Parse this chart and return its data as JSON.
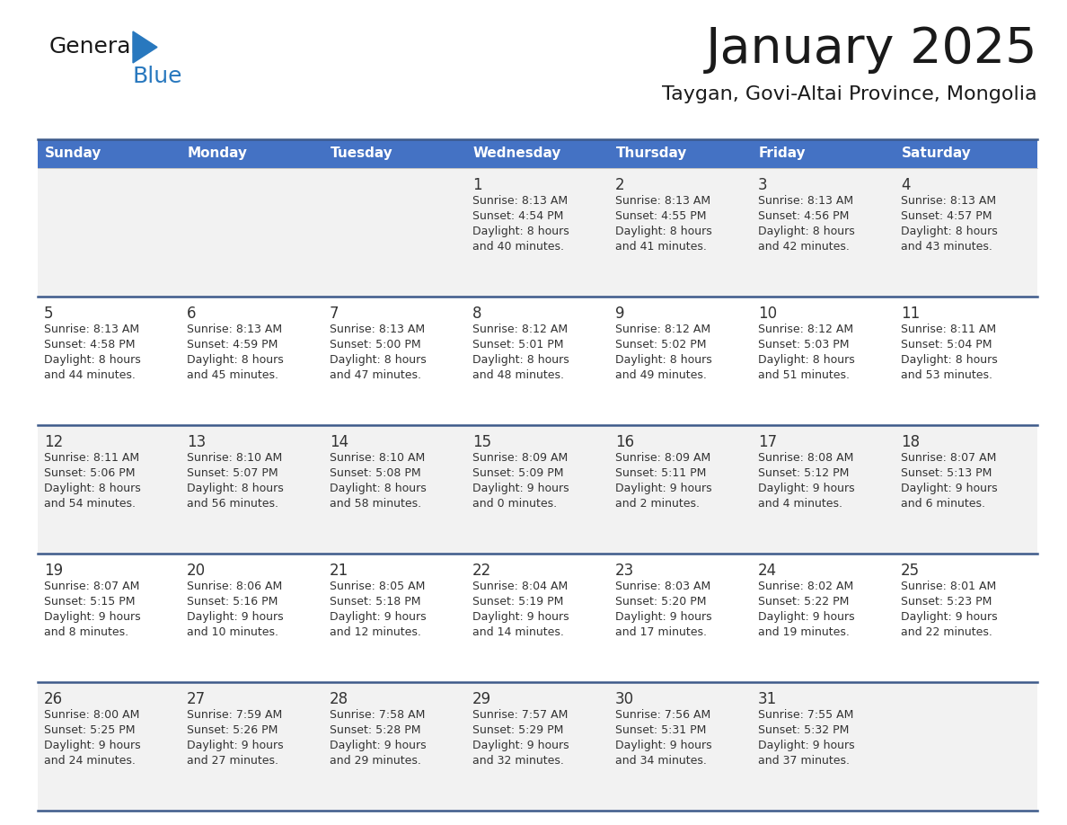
{
  "title": "January 2025",
  "subtitle": "Taygan, Govi-Altai Province, Mongolia",
  "header_bg": "#4472C4",
  "header_text_color": "#FFFFFF",
  "day_names": [
    "Sunday",
    "Monday",
    "Tuesday",
    "Wednesday",
    "Thursday",
    "Friday",
    "Saturday"
  ],
  "row_bg_odd": "#F2F2F2",
  "row_bg_even": "#FFFFFF",
  "cell_text_color": "#333333",
  "day_number_color": "#333333",
  "border_color": "#3D5A8A",
  "logo_general_color": "#1a1a1a",
  "logo_blue_color": "#2878BE",
  "days": [
    {
      "day": 1,
      "col": 3,
      "row": 0,
      "sunrise": "8:13 AM",
      "sunset": "4:54 PM",
      "daylight": "8 hours and 40 minutes."
    },
    {
      "day": 2,
      "col": 4,
      "row": 0,
      "sunrise": "8:13 AM",
      "sunset": "4:55 PM",
      "daylight": "8 hours and 41 minutes."
    },
    {
      "day": 3,
      "col": 5,
      "row": 0,
      "sunrise": "8:13 AM",
      "sunset": "4:56 PM",
      "daylight": "8 hours and 42 minutes."
    },
    {
      "day": 4,
      "col": 6,
      "row": 0,
      "sunrise": "8:13 AM",
      "sunset": "4:57 PM",
      "daylight": "8 hours and 43 minutes."
    },
    {
      "day": 5,
      "col": 0,
      "row": 1,
      "sunrise": "8:13 AM",
      "sunset": "4:58 PM",
      "daylight": "8 hours and 44 minutes."
    },
    {
      "day": 6,
      "col": 1,
      "row": 1,
      "sunrise": "8:13 AM",
      "sunset": "4:59 PM",
      "daylight": "8 hours and 45 minutes."
    },
    {
      "day": 7,
      "col": 2,
      "row": 1,
      "sunrise": "8:13 AM",
      "sunset": "5:00 PM",
      "daylight": "8 hours and 47 minutes."
    },
    {
      "day": 8,
      "col": 3,
      "row": 1,
      "sunrise": "8:12 AM",
      "sunset": "5:01 PM",
      "daylight": "8 hours and 48 minutes."
    },
    {
      "day": 9,
      "col": 4,
      "row": 1,
      "sunrise": "8:12 AM",
      "sunset": "5:02 PM",
      "daylight": "8 hours and 49 minutes."
    },
    {
      "day": 10,
      "col": 5,
      "row": 1,
      "sunrise": "8:12 AM",
      "sunset": "5:03 PM",
      "daylight": "8 hours and 51 minutes."
    },
    {
      "day": 11,
      "col": 6,
      "row": 1,
      "sunrise": "8:11 AM",
      "sunset": "5:04 PM",
      "daylight": "8 hours and 53 minutes."
    },
    {
      "day": 12,
      "col": 0,
      "row": 2,
      "sunrise": "8:11 AM",
      "sunset": "5:06 PM",
      "daylight": "8 hours and 54 minutes."
    },
    {
      "day": 13,
      "col": 1,
      "row": 2,
      "sunrise": "8:10 AM",
      "sunset": "5:07 PM",
      "daylight": "8 hours and 56 minutes."
    },
    {
      "day": 14,
      "col": 2,
      "row": 2,
      "sunrise": "8:10 AM",
      "sunset": "5:08 PM",
      "daylight": "8 hours and 58 minutes."
    },
    {
      "day": 15,
      "col": 3,
      "row": 2,
      "sunrise": "8:09 AM",
      "sunset": "5:09 PM",
      "daylight": "9 hours and 0 minutes."
    },
    {
      "day": 16,
      "col": 4,
      "row": 2,
      "sunrise": "8:09 AM",
      "sunset": "5:11 PM",
      "daylight": "9 hours and 2 minutes."
    },
    {
      "day": 17,
      "col": 5,
      "row": 2,
      "sunrise": "8:08 AM",
      "sunset": "5:12 PM",
      "daylight": "9 hours and 4 minutes."
    },
    {
      "day": 18,
      "col": 6,
      "row": 2,
      "sunrise": "8:07 AM",
      "sunset": "5:13 PM",
      "daylight": "9 hours and 6 minutes."
    },
    {
      "day": 19,
      "col": 0,
      "row": 3,
      "sunrise": "8:07 AM",
      "sunset": "5:15 PM",
      "daylight": "9 hours and 8 minutes."
    },
    {
      "day": 20,
      "col": 1,
      "row": 3,
      "sunrise": "8:06 AM",
      "sunset": "5:16 PM",
      "daylight": "9 hours and 10 minutes."
    },
    {
      "day": 21,
      "col": 2,
      "row": 3,
      "sunrise": "8:05 AM",
      "sunset": "5:18 PM",
      "daylight": "9 hours and 12 minutes."
    },
    {
      "day": 22,
      "col": 3,
      "row": 3,
      "sunrise": "8:04 AM",
      "sunset": "5:19 PM",
      "daylight": "9 hours and 14 minutes."
    },
    {
      "day": 23,
      "col": 4,
      "row": 3,
      "sunrise": "8:03 AM",
      "sunset": "5:20 PM",
      "daylight": "9 hours and 17 minutes."
    },
    {
      "day": 24,
      "col": 5,
      "row": 3,
      "sunrise": "8:02 AM",
      "sunset": "5:22 PM",
      "daylight": "9 hours and 19 minutes."
    },
    {
      "day": 25,
      "col": 6,
      "row": 3,
      "sunrise": "8:01 AM",
      "sunset": "5:23 PM",
      "daylight": "9 hours and 22 minutes."
    },
    {
      "day": 26,
      "col": 0,
      "row": 4,
      "sunrise": "8:00 AM",
      "sunset": "5:25 PM",
      "daylight": "9 hours and 24 minutes."
    },
    {
      "day": 27,
      "col": 1,
      "row": 4,
      "sunrise": "7:59 AM",
      "sunset": "5:26 PM",
      "daylight": "9 hours and 27 minutes."
    },
    {
      "day": 28,
      "col": 2,
      "row": 4,
      "sunrise": "7:58 AM",
      "sunset": "5:28 PM",
      "daylight": "9 hours and 29 minutes."
    },
    {
      "day": 29,
      "col": 3,
      "row": 4,
      "sunrise": "7:57 AM",
      "sunset": "5:29 PM",
      "daylight": "9 hours and 32 minutes."
    },
    {
      "day": 30,
      "col": 4,
      "row": 4,
      "sunrise": "7:56 AM",
      "sunset": "5:31 PM",
      "daylight": "9 hours and 34 minutes."
    },
    {
      "day": 31,
      "col": 5,
      "row": 4,
      "sunrise": "7:55 AM",
      "sunset": "5:32 PM",
      "daylight": "9 hours and 37 minutes."
    }
  ]
}
